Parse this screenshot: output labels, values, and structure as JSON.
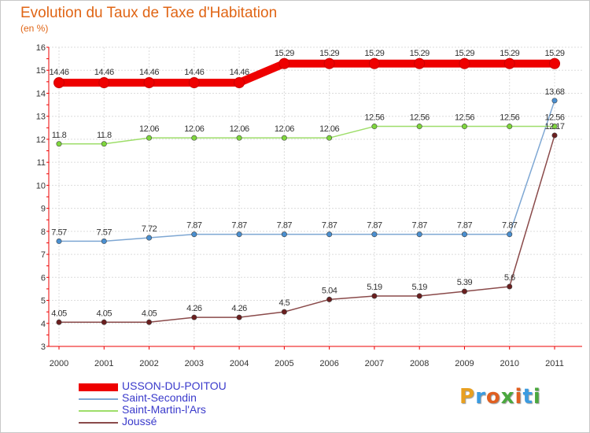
{
  "chart_data": {
    "type": "line",
    "title": "Evolution du Taux de Taxe d'Habitation",
    "unit_label": "(en %)",
    "xlabel": "",
    "ylabel": "",
    "ylim": [
      3,
      16
    ],
    "yticks": [
      3,
      4,
      5,
      6,
      7,
      8,
      9,
      10,
      11,
      12,
      13,
      14,
      15,
      16
    ],
    "categories": [
      "2000",
      "2001",
      "2002",
      "2003",
      "2004",
      "2005",
      "2006",
      "2007",
      "2008",
      "2009",
      "2010",
      "2011"
    ],
    "grid": true,
    "series": [
      {
        "name": "USSON-DU-POITOU",
        "color": "#ee0000",
        "emphasis": true,
        "values": [
          14.46,
          14.46,
          14.46,
          14.46,
          14.46,
          15.29,
          15.29,
          15.29,
          15.29,
          15.29,
          15.29,
          15.29
        ],
        "labels": [
          "14.46",
          "14.46",
          "14.46",
          "14.46",
          "14.46",
          "15.29",
          "15.29",
          "15.29",
          "15.29",
          "15.29",
          "15.29",
          "15.29"
        ]
      },
      {
        "name": "Saint-Secondin",
        "color": "#7ea7d3",
        "marker_color": "#4a8fd0",
        "emphasis": false,
        "values": [
          7.57,
          7.57,
          7.72,
          7.87,
          7.87,
          7.87,
          7.87,
          7.87,
          7.87,
          7.87,
          7.87,
          13.68
        ],
        "labels": [
          "7.57",
          "7.57",
          "7.72",
          "7.87",
          "7.87",
          "7.87",
          "7.87",
          "7.87",
          "7.87",
          "7.87",
          "7.87",
          "13.68"
        ]
      },
      {
        "name": "Saint-Martin-l'Ars",
        "color": "#9ede6a",
        "marker_color": "#7ed63c",
        "emphasis": false,
        "values": [
          11.8,
          11.8,
          12.06,
          12.06,
          12.06,
          12.06,
          12.06,
          12.56,
          12.56,
          12.56,
          12.56,
          12.56
        ],
        "labels": [
          "11.8",
          "11.8",
          "12.06",
          "12.06",
          "12.06",
          "12.06",
          "12.06",
          "12.56",
          "12.56",
          "12.56",
          "12.56",
          "12.56"
        ]
      },
      {
        "name": "Joussé",
        "color": "#8a4a4a",
        "marker_color": "#6b1f1f",
        "emphasis": false,
        "values": [
          4.05,
          4.05,
          4.05,
          4.26,
          4.26,
          4.5,
          5.04,
          5.19,
          5.19,
          5.39,
          5.6,
          12.17
        ],
        "labels": [
          "4.05",
          "4.05",
          "4.05",
          "4.26",
          "4.26",
          "4.5",
          "5.04",
          "5.19",
          "5.19",
          "5.39",
          "5.6",
          "12.17"
        ]
      }
    ]
  },
  "brand": {
    "letters": [
      "P",
      "r",
      "o",
      "x",
      "i",
      "t",
      "i"
    ],
    "colors": [
      "#e8a020",
      "#3b9be0",
      "#e05f20",
      "#4aa83e",
      "#e05f20",
      "#3b9be0",
      "#4aa83e"
    ]
  }
}
